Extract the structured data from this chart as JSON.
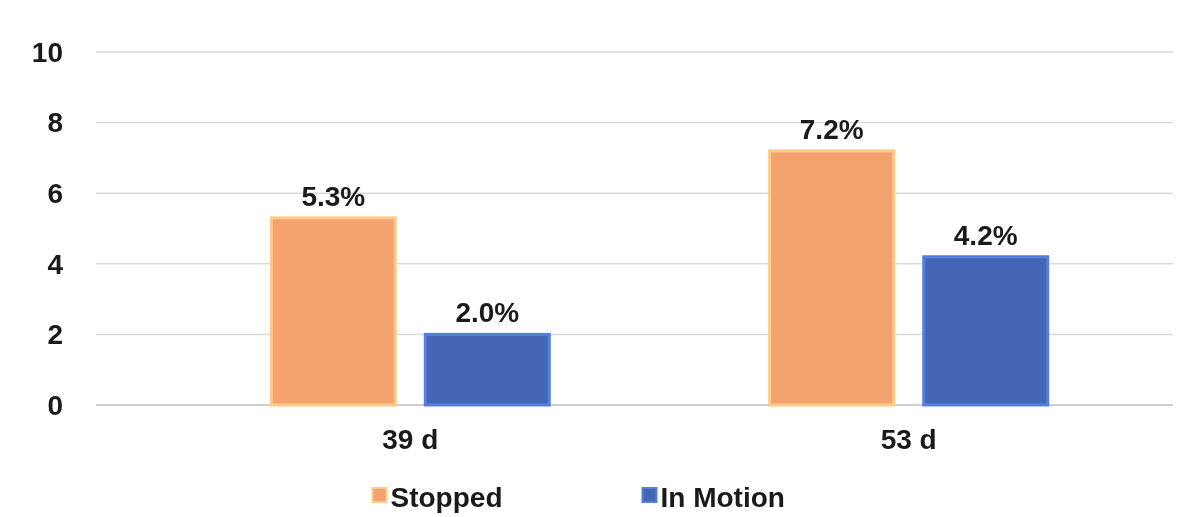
{
  "chart_data": {
    "type": "bar",
    "categories": [
      "39 d",
      "53 d"
    ],
    "series": [
      {
        "name": "Stopped",
        "color": "#f4a36f",
        "values": [
          5.3,
          7.2
        ],
        "value_labels": [
          "5.3%",
          "7.2%"
        ]
      },
      {
        "name": "In Motion",
        "color": "#4566b4",
        "values": [
          2.0,
          4.2
        ],
        "value_labels": [
          "2.0%",
          "4.2%"
        ]
      }
    ],
    "ylim": [
      0,
      10
    ],
    "yticks": [
      0,
      2,
      4,
      6,
      8,
      10
    ],
    "grid": "y",
    "legend": "bottom"
  }
}
